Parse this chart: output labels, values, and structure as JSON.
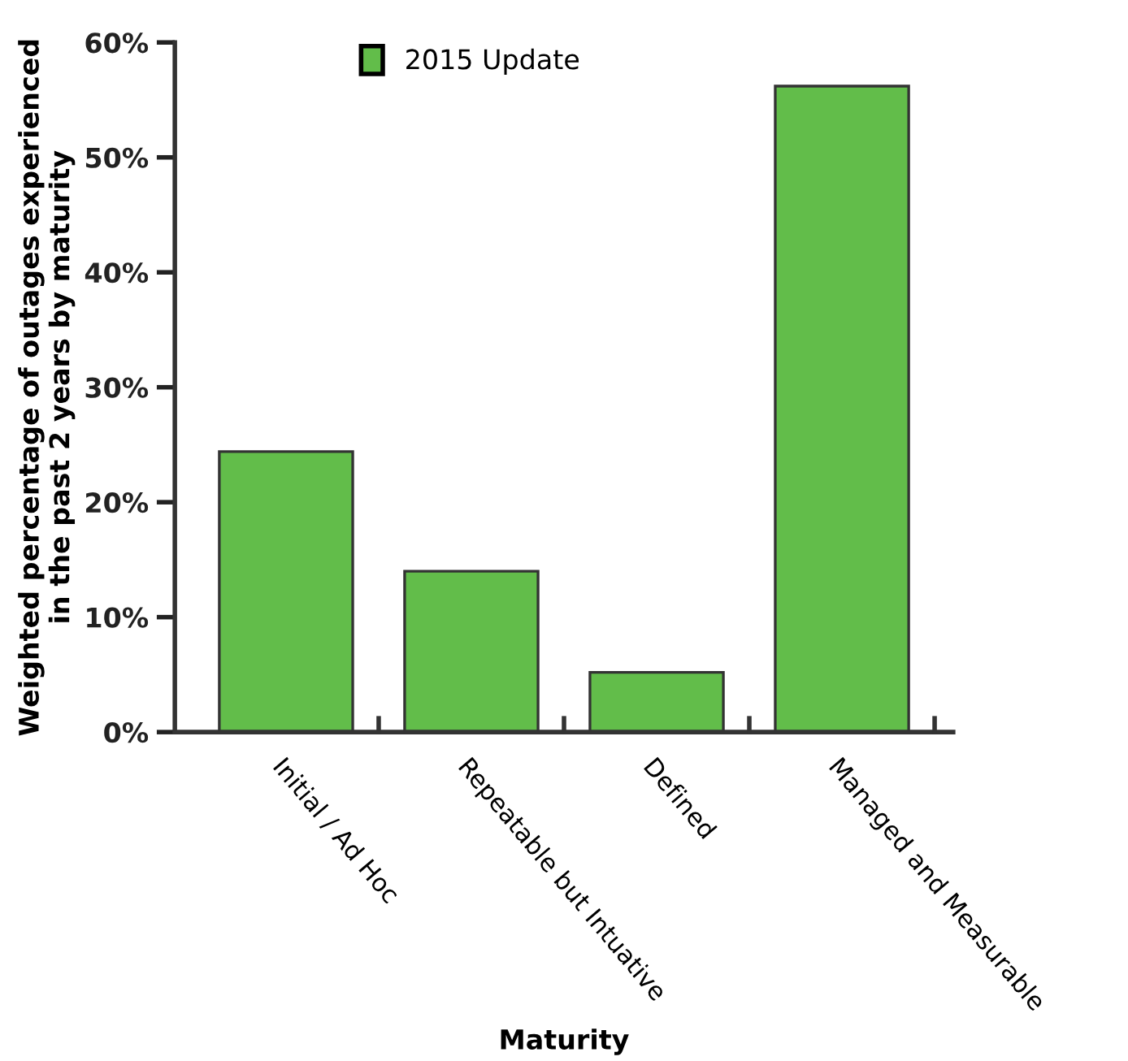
{
  "chart_data": {
    "type": "bar",
    "xlabel": "Maturity",
    "ylabel": "Weighted percentage of outages experienced\nin the past 2 years by maturity",
    "categories": [
      "Initial / Ad Hoc",
      "Repeatable but Intuative",
      "Defined",
      "Managed and Measurable"
    ],
    "series": [
      {
        "name": "2015 Update",
        "color": "#62bd4a",
        "values": [
          24.4,
          14.0,
          5.2,
          56.2
        ]
      }
    ],
    "ylim": [
      0,
      60
    ],
    "yticks": [
      {
        "value": 0,
        "label": "0%"
      },
      {
        "value": 10,
        "label": "10%"
      },
      {
        "value": 20,
        "label": "20%"
      },
      {
        "value": 30,
        "label": "30%"
      },
      {
        "value": 40,
        "label": "40%"
      },
      {
        "value": 50,
        "label": "50%"
      },
      {
        "value": 60,
        "label": "60%"
      }
    ],
    "grid": false,
    "legend": "top"
  }
}
